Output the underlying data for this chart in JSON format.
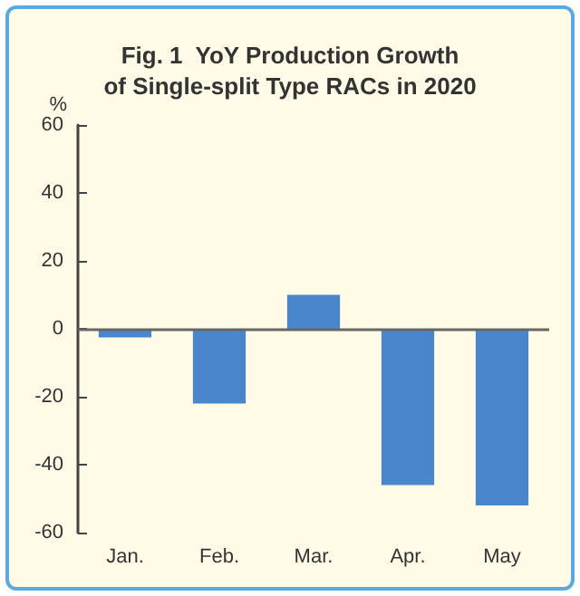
{
  "chart_data": {
    "type": "bar",
    "title": "Fig. 1  YoY Production Growth\nof Single-split Type RACs in 2020",
    "ylabel": "%",
    "categories": [
      "Jan.",
      "Feb.",
      "Mar.",
      "Apr.",
      "May"
    ],
    "values": [
      -2.5,
      -22,
      10,
      -46,
      -52
    ],
    "color": "#4a86cc",
    "ylim": [
      -60,
      60
    ],
    "yticks": [
      -60,
      -40,
      -20,
      0,
      20,
      40,
      60
    ],
    "grid": false,
    "ref_lines": [
      {
        "axis": "y",
        "value": 0,
        "color": "#666666"
      }
    ]
  }
}
